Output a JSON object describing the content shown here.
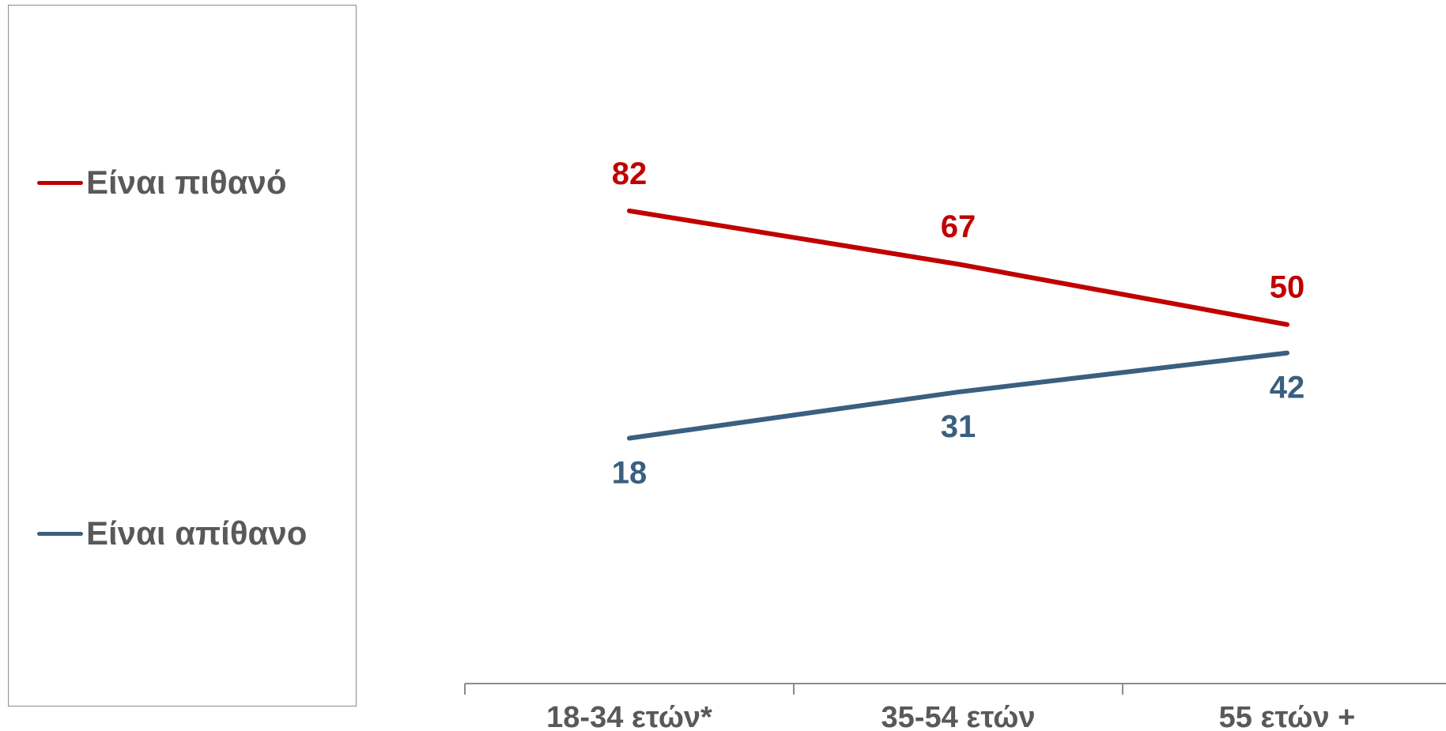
{
  "chart_data": {
    "type": "line",
    "categories": [
      "18-34 ετών*",
      "35-54 ετών",
      "55 ετών +"
    ],
    "series": [
      {
        "name": "Είναι πιθανό",
        "values": [
          82,
          67,
          50
        ],
        "color": "#c00000"
      },
      {
        "name": "Είναι απίθανο",
        "values": [
          18,
          31,
          42
        ],
        "color": "#3a5f80"
      }
    ],
    "ylim": [
      0,
      100
    ],
    "grid": false,
    "legend_position": "left",
    "title": "",
    "xlabel": "",
    "ylabel": ""
  }
}
